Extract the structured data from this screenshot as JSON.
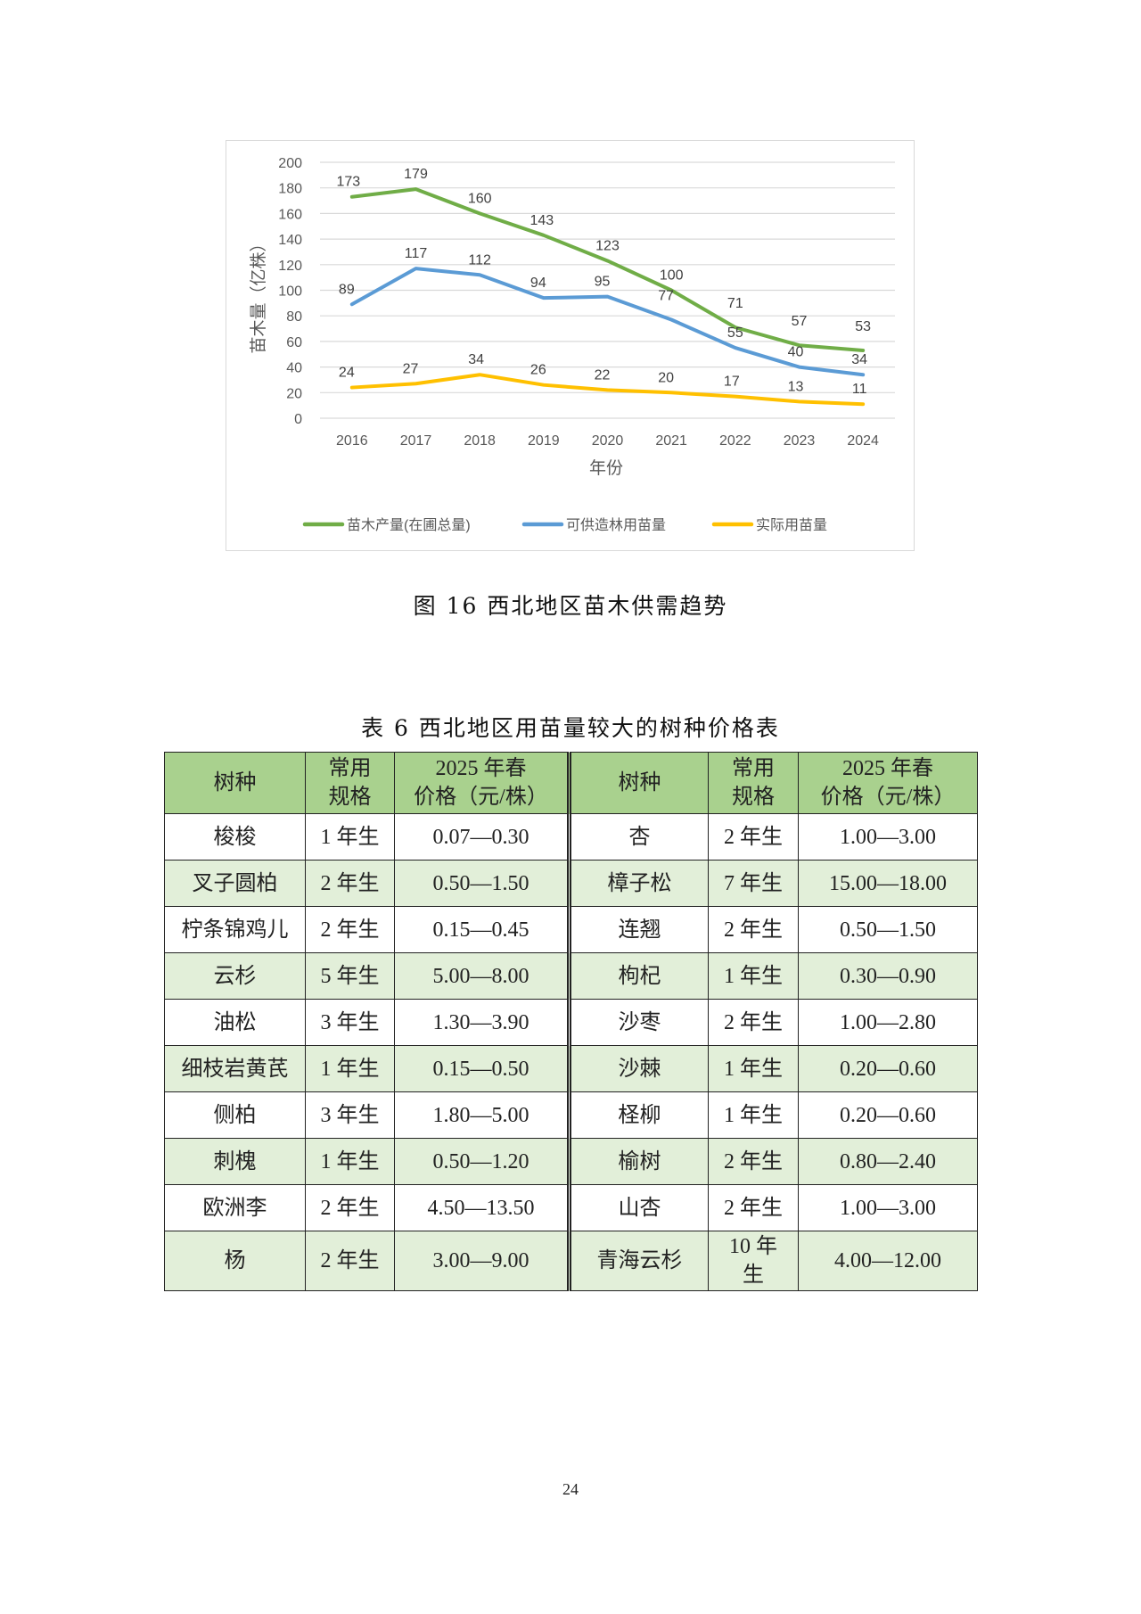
{
  "chart_data": {
    "type": "line",
    "title": "",
    "xlabel": "年份",
    "ylabel": "苗木量（亿株）",
    "ylim": [
      0,
      200
    ],
    "yticks": [
      0,
      20,
      40,
      60,
      80,
      100,
      120,
      140,
      160,
      180,
      200
    ],
    "grid": true,
    "legend_position": "bottom",
    "categories": [
      "2016",
      "2017",
      "2018",
      "2019",
      "2020",
      "2021",
      "2022",
      "2023",
      "2024"
    ],
    "series": [
      {
        "name": "苗木产量(在圃总量)",
        "color": "#70ad47",
        "values": [
          173,
          179,
          160,
          143,
          123,
          100,
          71,
          57,
          53
        ]
      },
      {
        "name": "可供造林用苗量",
        "color": "#5b9bd5",
        "values": [
          89,
          117,
          112,
          94,
          95,
          77,
          55,
          40,
          34
        ]
      },
      {
        "name": "实际用苗量",
        "color": "#ffc000",
        "values": [
          24,
          27,
          34,
          26,
          22,
          20,
          17,
          13,
          11
        ]
      }
    ]
  },
  "figure_caption": "图 16  西北地区苗木供需趋势",
  "table": {
    "title": "表 6  西北地区用苗量较大的树种价格表",
    "headers": [
      "树种",
      "常用\n规格",
      "2025 年春\n价格（元/株）",
      "树种",
      "常用\n规格",
      "2025 年春\n价格（元/株）"
    ],
    "header_color": "#a9d18e",
    "alt_row_color": "#e2efd9",
    "rows": [
      [
        "梭梭",
        "1 年生",
        "0.07—0.30",
        "杏",
        "2 年生",
        "1.00—3.00"
      ],
      [
        "叉子圆柏",
        "2 年生",
        "0.50—1.50",
        "樟子松",
        "7 年生",
        "15.00—18.00"
      ],
      [
        "柠条锦鸡儿",
        "2 年生",
        "0.15—0.45",
        "连翘",
        "2 年生",
        "0.50—1.50"
      ],
      [
        "云杉",
        "5 年生",
        "5.00—8.00",
        "枸杞",
        "1 年生",
        "0.30—0.90"
      ],
      [
        "油松",
        "3 年生",
        "1.30—3.90",
        "沙枣",
        "2 年生",
        "1.00—2.80"
      ],
      [
        "细枝岩黄芪",
        "1 年生",
        "0.15—0.50",
        "沙棘",
        "1 年生",
        "0.20—0.60"
      ],
      [
        "侧柏",
        "3 年生",
        "1.80—5.00",
        "柽柳",
        "1 年生",
        "0.20—0.60"
      ],
      [
        "刺槐",
        "1 年生",
        "0.50—1.20",
        "榆树",
        "2 年生",
        "0.80—2.40"
      ],
      [
        "欧洲李",
        "2 年生",
        "4.50—13.50",
        "山杏",
        "2 年生",
        "1.00—3.00"
      ],
      [
        "杨",
        "2 年生",
        "3.00—9.00",
        "青海云杉",
        "10 年\n生",
        "4.00—12.00"
      ]
    ]
  },
  "page_number": "24"
}
